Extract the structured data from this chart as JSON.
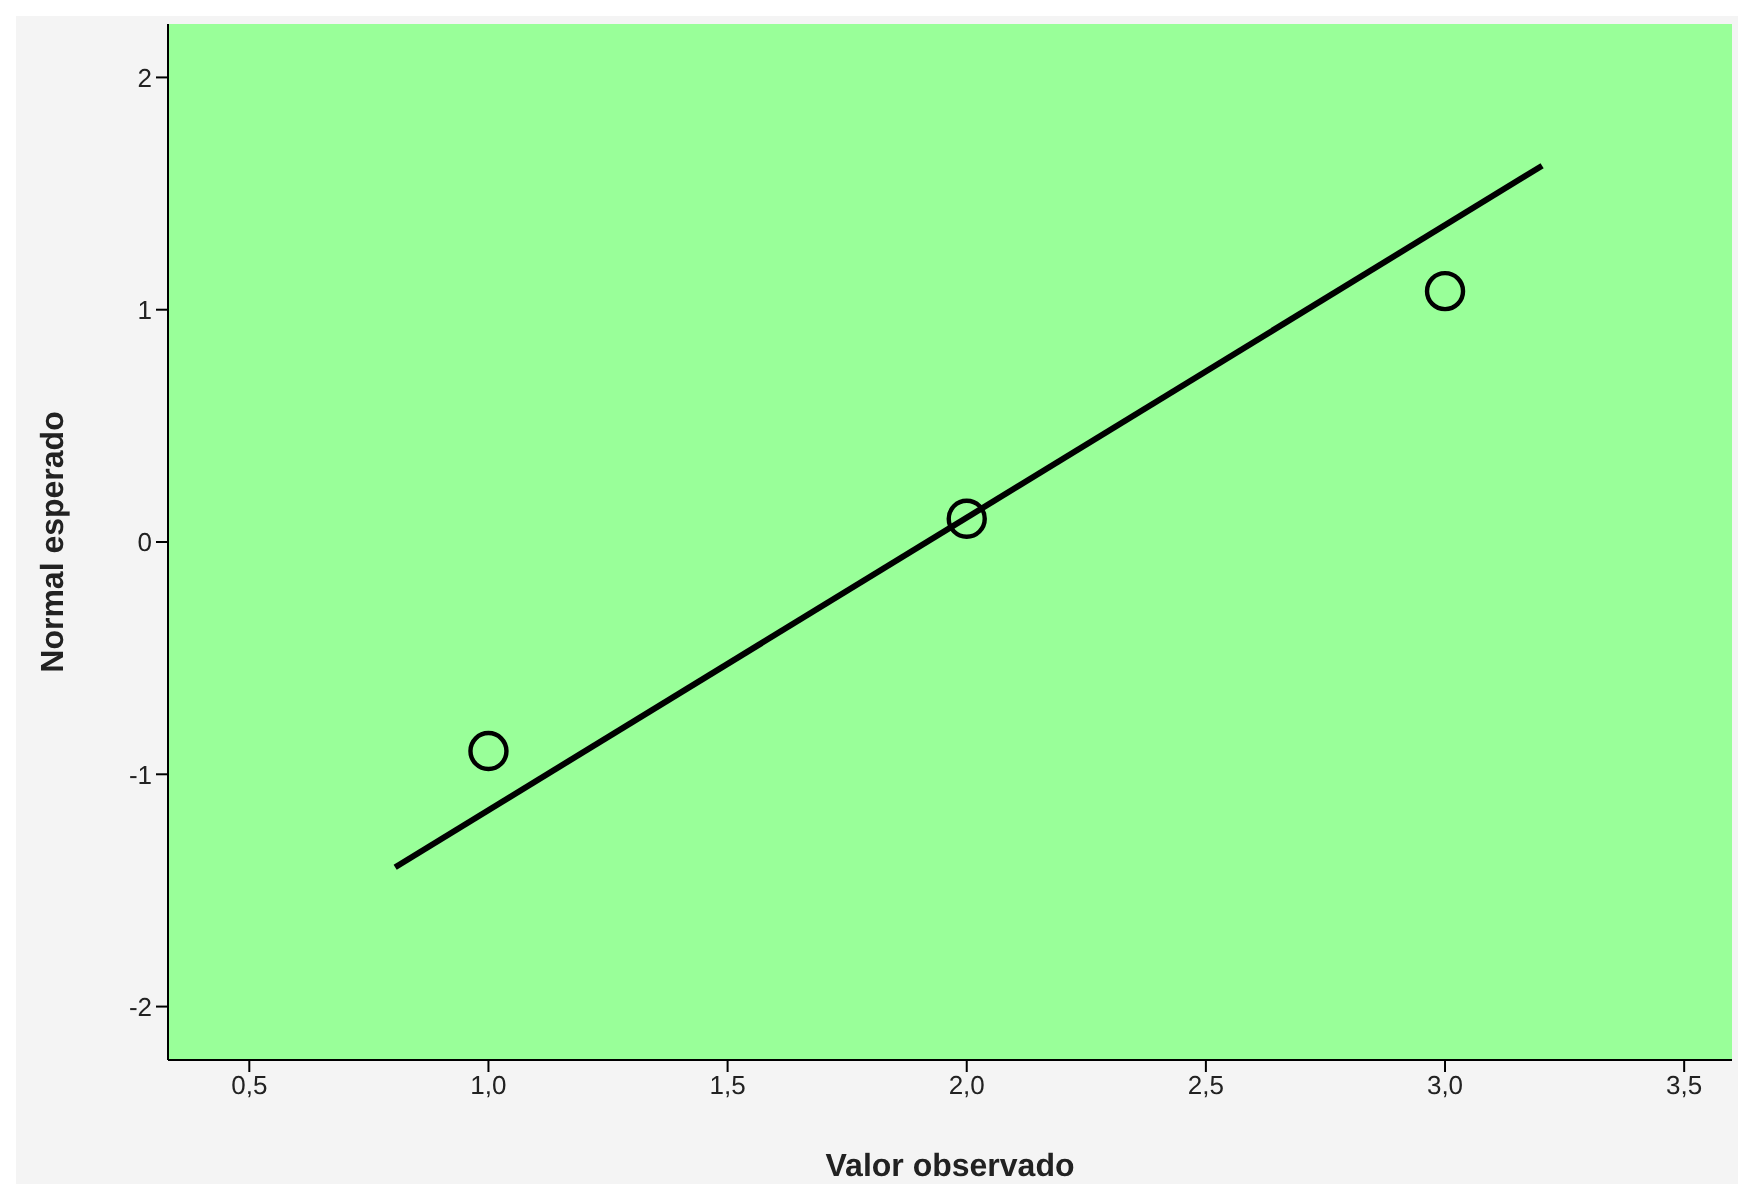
{
  "chart_data": {
    "type": "scatter",
    "xlabel": "Valor observado",
    "ylabel": "Normal esperado",
    "xlim": [
      0.33,
      3.6
    ],
    "ylim": [
      -2.23,
      2.23
    ],
    "xticks": [
      {
        "value": 0.5,
        "label": "0,5"
      },
      {
        "value": 1,
        "label": "1,0"
      },
      {
        "value": 1.5,
        "label": "1,5"
      },
      {
        "value": 2,
        "label": "2,0"
      },
      {
        "value": 2.5,
        "label": "2,5"
      },
      {
        "value": 3,
        "label": "3,0"
      },
      {
        "value": 3.5,
        "label": "3,5"
      }
    ],
    "yticks": [
      -2,
      -1,
      0,
      1,
      2
    ],
    "grid": false,
    "legend": false,
    "series": [
      {
        "type": "scatter",
        "color": "#000000",
        "marker": "circle",
        "x": [
          1,
          2,
          3
        ],
        "values": [
          -0.9,
          0.1,
          1.08
        ]
      },
      {
        "type": "line",
        "color": "#000000",
        "marker": "none",
        "line_style": "solid",
        "x": [
          0.805,
          3.203
        ],
        "values": [
          -1.4,
          1.62
        ]
      }
    ]
  }
}
